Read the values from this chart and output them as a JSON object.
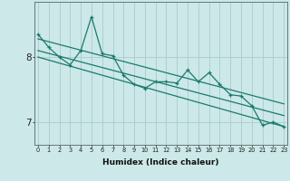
{
  "xlabel": "Humidex (Indice chaleur)",
  "x_values": [
    0,
    1,
    2,
    3,
    4,
    5,
    6,
    7,
    8,
    9,
    10,
    11,
    12,
    13,
    14,
    15,
    16,
    17,
    18,
    19,
    20,
    21,
    22,
    23
  ],
  "line1": [
    8.35,
    8.15,
    8.0,
    7.88,
    8.1,
    8.62,
    8.05,
    8.02,
    7.72,
    7.58,
    7.52,
    7.62,
    7.62,
    7.6,
    7.8,
    7.62,
    7.76,
    7.58,
    7.42,
    7.4,
    7.25,
    6.95,
    7.0,
    6.93
  ],
  "regression_lines": [
    {
      "start_x": 0,
      "start_y": 8.28,
      "end_x": 23,
      "end_y": 7.28
    },
    {
      "start_x": 0,
      "start_y": 8.1,
      "end_x": 23,
      "end_y": 7.1
    },
    {
      "start_x": 0,
      "start_y": 8.0,
      "end_x": 23,
      "end_y": 6.93
    }
  ],
  "bg_color": "#cce8e8",
  "line_color": "#1a7a6e",
  "grid_color": "#aacccc",
  "yticks": [
    7,
    8
  ],
  "ylim": [
    6.65,
    8.85
  ],
  "xlim": [
    -0.3,
    23.3
  ]
}
